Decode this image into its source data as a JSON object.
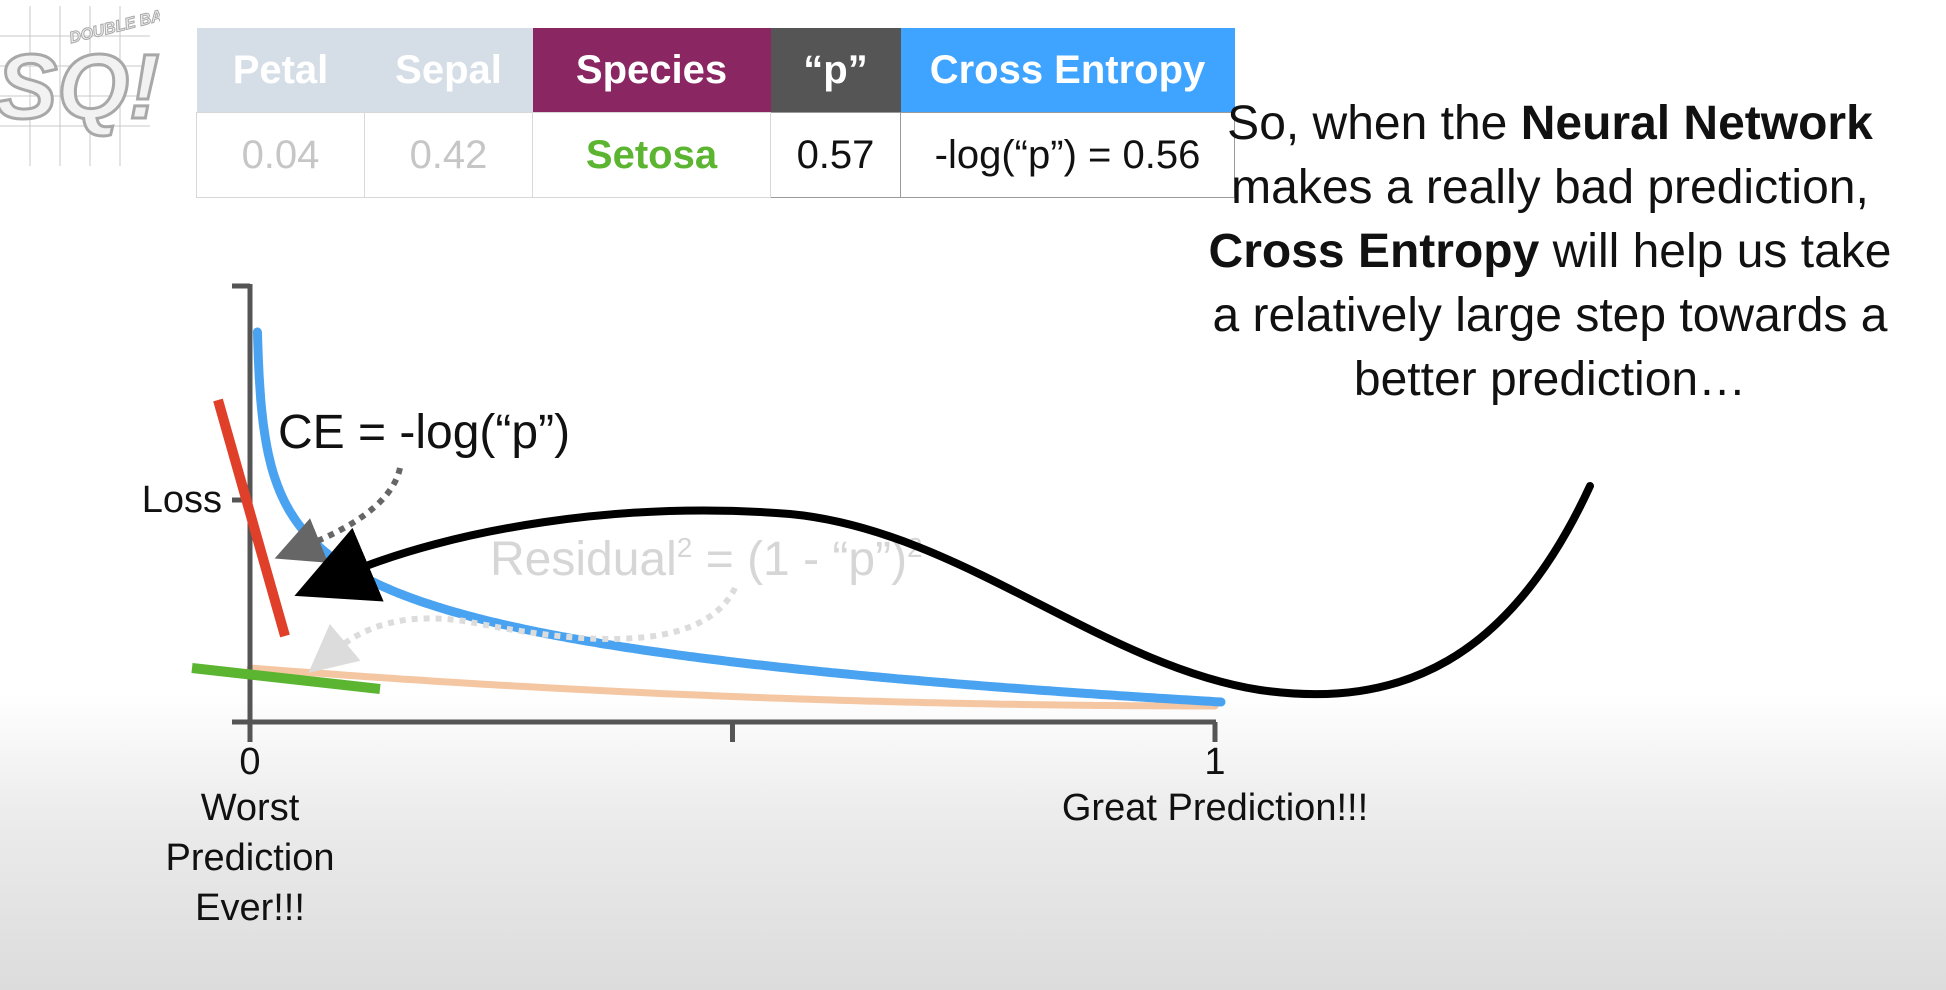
{
  "logo": {
    "letters": "SQ!",
    "tagline": "DOUBLE BAM!!!"
  },
  "table": {
    "headers": [
      "Petal",
      "Sepal",
      "Species",
      "“p”",
      "Cross Entropy"
    ],
    "row": [
      "0.04",
      "0.42",
      "Setosa",
      "0.57",
      "-log(“p”) = 0.56"
    ]
  },
  "callout": {
    "parts": [
      "So, when the ",
      "Neural Network",
      " makes a really bad prediction, ",
      "Cross Entropy",
      " will help us take a relatively large step towards a better prediction…"
    ]
  },
  "chart_data": {
    "type": "line",
    "ylabel": "Loss",
    "xlim": [
      0,
      1
    ],
    "x_ticks": [
      0,
      0.5,
      1
    ],
    "x_tick_labels": [
      "0",
      "",
      "1"
    ],
    "x_annotations": [
      {
        "x": 0,
        "text": "Worst Prediction Ever!!!"
      },
      {
        "x": 1,
        "text": "Great Prediction!!!"
      }
    ],
    "series": [
      {
        "name": "CE = -log(“p”)",
        "function": "-log(p)",
        "color": "#4aa3f0"
      },
      {
        "name": "Residual² = (1 - “p”)²",
        "function": "(1-p)^2",
        "color": "#f4c6a2",
        "faded": true
      }
    ],
    "label_ce": "CE = -log(“p”)",
    "label_residual_main": "Residual",
    "label_residual_sup": "2",
    "label_residual_rest": " = (1 - “p”)",
    "label_residual_sup2": "2",
    "tangent_colors": {
      "ce": "#e0402a",
      "residual": "#5bb531"
    },
    "arrow_color": "#000000"
  }
}
